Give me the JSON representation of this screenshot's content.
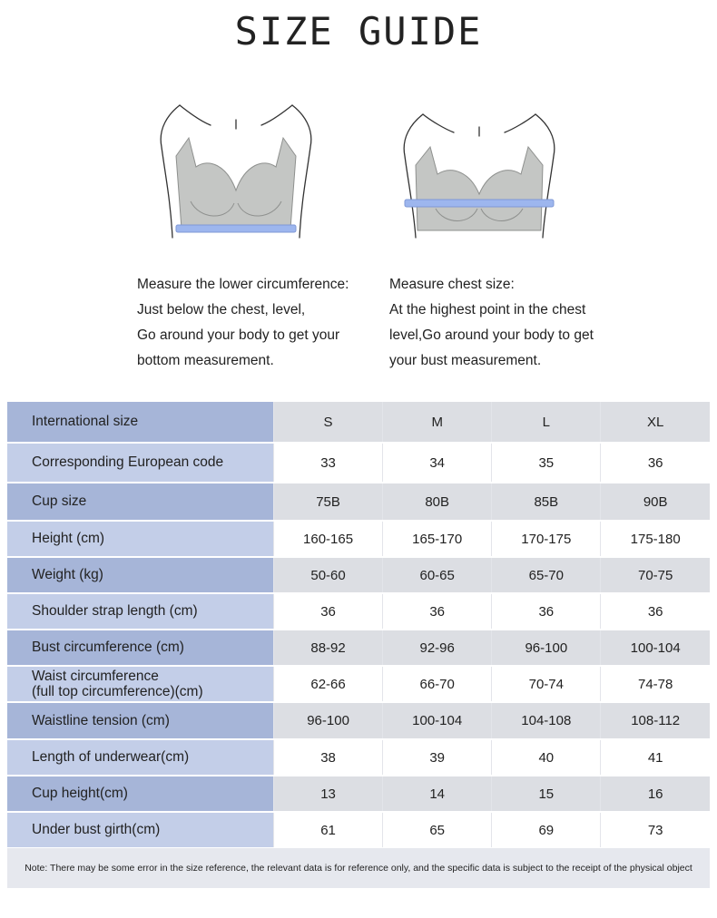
{
  "title": "SIZE GUIDE",
  "figures": [
    {
      "icon": "bra-underbust-measure-illustration"
    },
    {
      "icon": "bra-bust-measure-illustration"
    }
  ],
  "captions": {
    "left": [
      "Measure the lower circumference:",
      "Just below the chest, level,",
      "Go around your body to get your",
      "bottom measurement."
    ],
    "right": [
      "Measure chest size:",
      "At the highest point in the chest",
      "level,Go around your body to get",
      "your bust measurement."
    ]
  },
  "table": {
    "rows": [
      {
        "label": "International size",
        "values": [
          "S",
          "M",
          "L",
          "XL"
        ]
      },
      {
        "label": "Corresponding European code",
        "values": [
          "33",
          "34",
          "35",
          "36"
        ]
      },
      {
        "label": "Cup size",
        "values": [
          "75B",
          "80B",
          "85B",
          "90B"
        ]
      },
      {
        "label": "Height (cm)",
        "values": [
          "160-165",
          "165-170",
          "170-175",
          "175-180"
        ]
      },
      {
        "label": "Weight (kg)",
        "values": [
          "50-60",
          "60-65",
          "65-70",
          "70-75"
        ]
      },
      {
        "label": "Shoulder strap length (cm)",
        "values": [
          "36",
          "36",
          "36",
          "36"
        ]
      },
      {
        "label": "Bust circumference (cm)",
        "values": [
          "88-92",
          "92-96",
          "96-100",
          "100-104"
        ]
      },
      {
        "label_line1": "Waist circumference",
        "label_line2": "(full top circumference)(cm)",
        "values": [
          "62-66",
          "66-70",
          "70-74",
          "74-78"
        ]
      },
      {
        "label": "Waistline tension (cm)",
        "values": [
          "96-100",
          "100-104",
          "104-108",
          "108-112"
        ]
      },
      {
        "label": "Length of underwear(cm)",
        "values": [
          "38",
          "39",
          "40",
          "41"
        ]
      },
      {
        "label": "Cup height(cm)",
        "values": [
          "13",
          "14",
          "15",
          "16"
        ]
      },
      {
        "label": "Under bust girth(cm)",
        "values": [
          "61",
          "65",
          "69",
          "73"
        ]
      }
    ]
  },
  "note": "Note: There may be some error in the size reference, the relevant data is for reference only, and the specific data is subject to the receipt of the physical object",
  "colors": {
    "label_light": "#c3cee8",
    "label_dark": "#a6b5d8",
    "value_light": "#ffffff",
    "value_dark": "#dcdee3",
    "measure_band": "#9db6ee",
    "garment": "#c4c6c4"
  }
}
